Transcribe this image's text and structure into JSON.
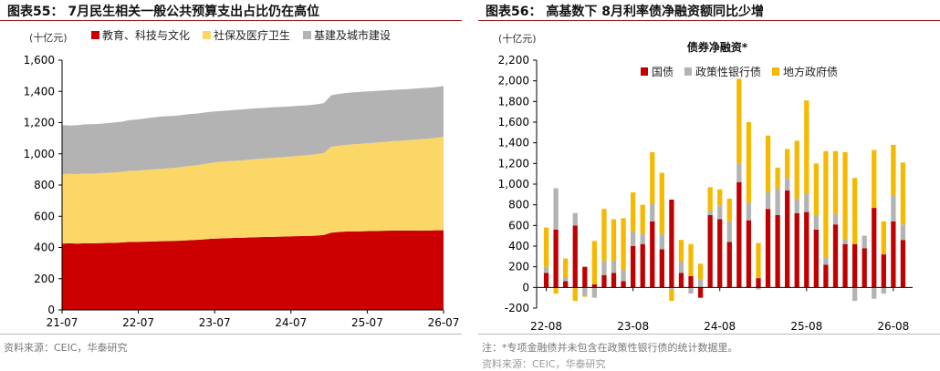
{
  "left": {
    "title": "图表55： 7月民生相关一般公共预算支出占比仍在高位",
    "source": "资料来源：CEIC，华泰研究",
    "chart_data": {
      "type": "area",
      "unit_label": "(十亿元)",
      "stacked": true,
      "x_ticks": [
        "21-07",
        "22-07",
        "23-07",
        "24-07",
        "25-07",
        "26-07"
      ],
      "ylim": [
        0,
        1600
      ],
      "y_ticks": [
        0,
        200,
        400,
        600,
        800,
        1000,
        1200,
        1400,
        1600
      ],
      "legend_position": "top",
      "series": [
        {
          "name": "教育、科技与文化",
          "color": "#cc0000",
          "values": [
            425,
            427,
            425,
            427,
            426,
            428,
            429,
            430,
            432,
            436,
            436,
            437,
            438,
            440,
            441,
            442,
            444,
            447,
            449,
            452,
            456,
            458,
            460,
            461,
            462,
            464,
            466,
            467,
            468,
            469,
            470,
            472,
            473,
            474,
            476,
            480,
            495,
            499,
            502,
            503,
            504,
            505,
            506,
            507,
            508,
            508,
            508,
            508,
            509,
            509,
            510,
            510
          ]
        },
        {
          "name": "社保及医疗卫生",
          "color": "#fbd768",
          "values": [
            444,
            445,
            445,
            447,
            447,
            448,
            449,
            451,
            452,
            455,
            456,
            459,
            461,
            463,
            466,
            468,
            471,
            475,
            478,
            482,
            487,
            490,
            492,
            494,
            496,
            498,
            501,
            503,
            506,
            508,
            510,
            513,
            515,
            518,
            521,
            525,
            550,
            553,
            555,
            558,
            560,
            563,
            566,
            569,
            572,
            575,
            578,
            582,
            585,
            588,
            592,
            598
          ]
        },
        {
          "name": "基建及城市建设",
          "color": "#b3b3b3",
          "values": [
            315,
            310,
            313,
            315,
            317,
            316,
            318,
            320,
            322,
            325,
            328,
            330,
            333,
            335,
            334,
            333,
            333,
            333,
            331,
            330,
            327,
            326,
            325,
            326,
            326,
            326,
            325,
            324,
            324,
            323,
            322,
            321,
            321,
            320,
            320,
            320,
            330,
            332,
            333,
            333,
            333,
            332,
            331,
            330,
            329,
            329,
            328,
            327,
            327,
            326,
            326,
            326
          ]
        }
      ]
    }
  },
  "right": {
    "title": "图表56： 高基数下 8月利率债净融资额同比少增",
    "source": "注：*专项金融债并未包含在政策性银行债的统计数据里。",
    "source2": "资料来源：CEIC，华泰研究",
    "chart_data": {
      "type": "bar",
      "stacked": true,
      "title": "债券净融资*",
      "unit_label": "(十亿元)",
      "x_ticks": [
        "22-08",
        "23-08",
        "24-08",
        "25-08",
        "26-08"
      ],
      "ylim": [
        -200,
        2200
      ],
      "y_ticks": [
        -200,
        0,
        200,
        400,
        600,
        800,
        1000,
        1200,
        1400,
        1600,
        1800,
        2000,
        2200
      ],
      "legend_position": "top",
      "series": [
        {
          "name": "国债",
          "color": "#c00000",
          "values": [
            140,
            560,
            60,
            600,
            200,
            30,
            120,
            140,
            60,
            400,
            420,
            640,
            370,
            850,
            140,
            110,
            -100,
            700,
            660,
            440,
            1020,
            650,
            90,
            760,
            700,
            940,
            720,
            730,
            560,
            220,
            610,
            420,
            420,
            380,
            770,
            320,
            640,
            460
          ]
        },
        {
          "name": "政策性银行债",
          "color": "#b3b3b3",
          "values": [
            60,
            400,
            40,
            120,
            -80,
            -100,
            140,
            120,
            110,
            140,
            100,
            170,
            150,
            -20,
            110,
            -60,
            80,
            40,
            130,
            200,
            180,
            170,
            -20,
            160,
            260,
            120,
            140,
            180,
            140,
            70,
            100,
            50,
            -130,
            120,
            -110,
            -60,
            250,
            150
          ]
        },
        {
          "name": "地方政府债",
          "color": "#f5b900",
          "values": [
            380,
            -60,
            180,
            -130,
            -10,
            420,
            500,
            400,
            500,
            380,
            280,
            500,
            590,
            -110,
            210,
            310,
            150,
            230,
            160,
            220,
            820,
            780,
            340,
            550,
            200,
            280,
            560,
            900,
            500,
            1030,
            610,
            840,
            640,
            0,
            560,
            320,
            490,
            600
          ]
        }
      ]
    }
  }
}
